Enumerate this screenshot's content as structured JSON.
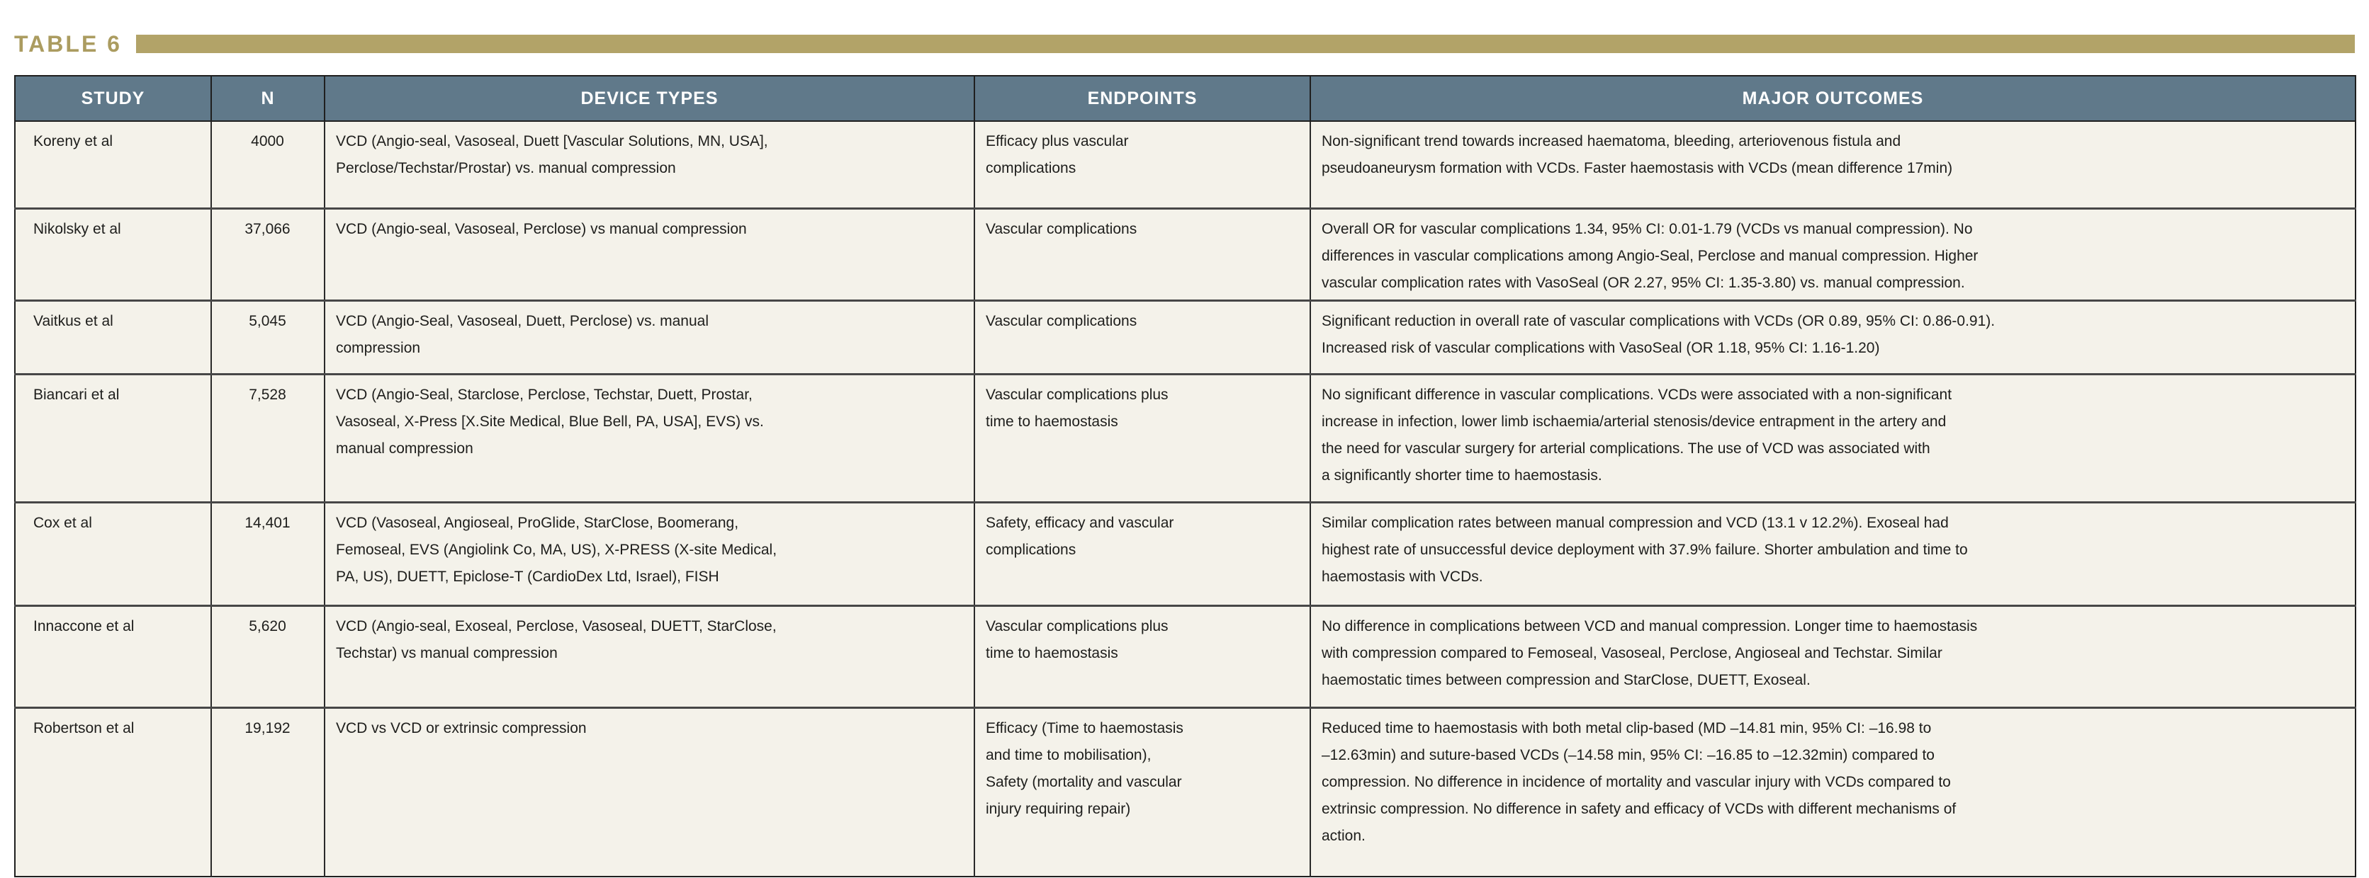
{
  "title": "TABLE 6",
  "colors": {
    "gold": "#b2a368",
    "gold_text": "#ab9c60",
    "header_bg": "#60798a",
    "row_bg": "#f4f2ea",
    "text": "#1e1e1c"
  },
  "table": {
    "columns": [
      "STUDY",
      "N",
      "DEVICE TYPES",
      "ENDPOINTS",
      "MAJOR OUTCOMES"
    ],
    "rows": [
      {
        "study": "Koreny et al",
        "n": "4000",
        "device_types": "VCD (Angio-seal, Vasoseal, Duett [Vascular Solutions, MN, USA],\nPerclose/Techstar/Prostar) vs. manual compression",
        "endpoints": "Efficacy plus vascular\ncomplications",
        "major_outcomes": "Non-significant trend towards increased haematoma, bleeding, arteriovenous fistula and\npseudoaneurysm formation with VCDs. Faster haemostasis with VCDs (mean difference 17min)"
      },
      {
        "study": "Nikolsky et al",
        "n": "37,066",
        "device_types": "VCD (Angio-seal, Vasoseal, Perclose) vs manual compression",
        "endpoints": "Vascular complications",
        "major_outcomes": "Overall OR for vascular complications 1.34, 95% CI: 0.01-1.79 (VCDs vs manual compression). No\ndifferences in vascular complications among Angio-Seal, Perclose and manual compression. Higher\nvascular complication rates with VasoSeal (OR 2.27, 95% CI: 1.35-3.80) vs. manual compression."
      },
      {
        "study": "Vaitkus et al",
        "n": "5,045",
        "device_types": "VCD (Angio-Seal, Vasoseal, Duett, Perclose) vs. manual\ncompression",
        "endpoints": "Vascular complications",
        "major_outcomes": "Significant reduction in overall rate of vascular complications with VCDs (OR 0.89, 95% CI: 0.86-0.91).\nIncreased risk of vascular complications with VasoSeal (OR 1.18, 95% CI: 1.16-1.20)"
      },
      {
        "study": "Biancari et al",
        "n": "7,528",
        "device_types": "VCD (Angio-Seal, Starclose, Perclose, Techstar, Duett, Prostar,\nVasoseal, X-Press [X.Site Medical, Blue Bell, PA, USA], EVS) vs.\nmanual compression",
        "endpoints": "Vascular complications plus\ntime to haemostasis",
        "major_outcomes": "No significant difference in vascular complications. VCDs were associated with a non-significant\nincrease in infection, lower limb ischaemia/arterial stenosis/device entrapment in the artery and\nthe need for vascular surgery for arterial complications. The use of VCD was associated with\na significantly shorter time to haemostasis."
      },
      {
        "study": "Cox et al",
        "n": "14,401",
        "device_types": "VCD (Vasoseal, Angioseal, ProGlide, StarClose, Boomerang,\nFemoseal, EVS (Angiolink Co, MA, US), X-PRESS (X-site Medical,\nPA, US), DUETT, Epiclose-T (CardioDex Ltd, Israel), FISH",
        "endpoints": "Safety, efficacy and vascular\ncomplications",
        "major_outcomes": "Similar complication rates between manual compression and VCD (13.1 v 12.2%). Exoseal had\nhighest rate of unsuccessful device deployment with 37.9% failure. Shorter ambulation and time to\nhaemostasis with VCDs."
      },
      {
        "study": "Innaccone et al",
        "n": "5,620",
        "device_types": "VCD (Angio-seal, Exoseal, Perclose, Vasoseal, DUETT, StarClose,\nTechstar) vs manual compression",
        "endpoints": "Vascular complications plus\ntime to haemostasis",
        "major_outcomes": "No difference in complications between VCD and manual compression. Longer time to haemostasis\nwith compression compared to Femoseal, Vasoseal, Perclose, Angioseal and Techstar. Similar\nhaemostatic times between compression and StarClose, DUETT, Exoseal."
      },
      {
        "study": "Robertson et al",
        "n": "19,192",
        "device_types": "VCD vs VCD or extrinsic compression",
        "endpoints": "Efficacy (Time to haemostasis\nand time to mobilisation),\nSafety (mortality and vascular\ninjury requiring repair)",
        "major_outcomes": "Reduced time to haemostasis with both metal clip-based (MD –14.81 min, 95% CI: –16.98 to\n–12.63min) and suture-based VCDs (–14.58 min, 95% CI: –16.85 to –12.32min) compared to\ncompression. No difference in incidence of mortality and vascular injury with VCDs compared to\nextrinsic compression. No difference in safety and efficacy of VCDs with different mechanisms of\naction."
      }
    ]
  }
}
